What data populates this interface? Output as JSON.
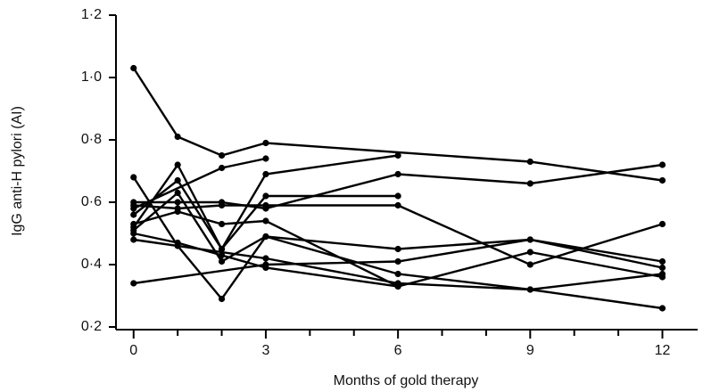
{
  "chart_data": {
    "type": "line",
    "xlabel": "Months of gold therapy",
    "ylabel": "IgG anti-H pylori (AI)",
    "xlim": [
      -0.4,
      12.8
    ],
    "ylim": [
      0.2,
      1.2
    ],
    "xticks": [
      0,
      3,
      6,
      9,
      12
    ],
    "xminorticks": [
      1,
      2,
      4,
      5,
      7,
      8,
      10,
      11
    ],
    "yticks": [
      {
        "value": 0.2,
        "label": "0·2"
      },
      {
        "value": 0.4,
        "label": "0·4"
      },
      {
        "value": 0.6,
        "label": "0·6"
      },
      {
        "value": 0.8,
        "label": "0·8"
      },
      {
        "value": 1.0,
        "label": "1·0"
      },
      {
        "value": 1.2,
        "label": "1·2"
      }
    ],
    "color": "#000000",
    "series": [
      {
        "x": [
          0,
          1,
          2,
          3,
          9,
          12
        ],
        "values": [
          1.03,
          0.81,
          0.75,
          0.79,
          0.73,
          0.67
        ]
      },
      {
        "x": [
          0,
          2,
          3
        ],
        "values": [
          0.58,
          0.71,
          0.74
        ]
      },
      {
        "x": [
          0,
          1,
          2,
          3,
          6
        ],
        "values": [
          0.52,
          0.72,
          0.45,
          0.69,
          0.75
        ]
      },
      {
        "x": [
          0,
          1,
          2,
          3,
          6,
          9,
          12
        ],
        "values": [
          0.68,
          0.46,
          0.29,
          0.49,
          0.37,
          0.32,
          0.37
        ]
      },
      {
        "x": [
          0,
          1,
          2,
          3,
          6
        ],
        "values": [
          0.56,
          0.67,
          0.45,
          0.62,
          0.62
        ]
      },
      {
        "x": [
          0,
          1,
          2,
          3,
          6,
          9,
          12
        ],
        "values": [
          0.6,
          0.6,
          0.6,
          0.58,
          0.69,
          0.66,
          0.72
        ]
      },
      {
        "x": [
          0,
          1,
          2,
          3,
          6,
          9,
          12
        ],
        "values": [
          0.59,
          0.58,
          0.59,
          0.59,
          0.59,
          0.4,
          0.53
        ]
      },
      {
        "x": [
          0,
          3,
          6,
          9,
          12
        ],
        "values": [
          0.34,
          0.4,
          0.41,
          0.48,
          0.41
        ]
      },
      {
        "x": [
          0,
          1,
          2,
          3,
          6,
          9,
          12
        ],
        "values": [
          0.51,
          0.63,
          0.41,
          0.49,
          0.45,
          0.48,
          0.39
        ]
      },
      {
        "x": [
          0,
          1,
          2,
          3,
          6,
          9,
          12
        ],
        "values": [
          0.5,
          0.47,
          0.43,
          0.39,
          0.33,
          0.44,
          0.36
        ]
      },
      {
        "x": [
          0,
          3,
          6,
          9,
          12
        ],
        "values": [
          0.48,
          0.42,
          0.34,
          0.32,
          0.26
        ]
      },
      {
        "x": [
          0,
          1,
          2,
          3,
          6
        ],
        "values": [
          0.53,
          0.57,
          0.53,
          0.54,
          0.33
        ]
      }
    ]
  }
}
